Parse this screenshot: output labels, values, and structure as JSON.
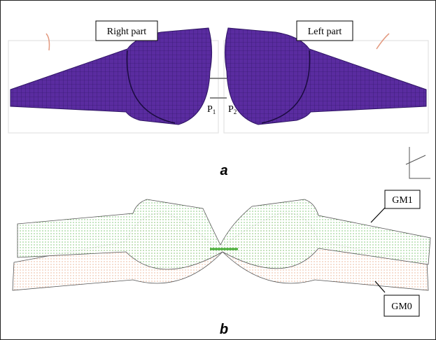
{
  "panel_a": {
    "caption": "a",
    "labels": {
      "right": "Right part",
      "left": "Left part"
    },
    "points": [
      {
        "letter": "P",
        "sub": "1"
      },
      {
        "letter": "P",
        "sub": "2"
      }
    ]
  },
  "panel_b": {
    "caption": "b",
    "labels": [
      "GM1",
      "GM0"
    ]
  }
}
